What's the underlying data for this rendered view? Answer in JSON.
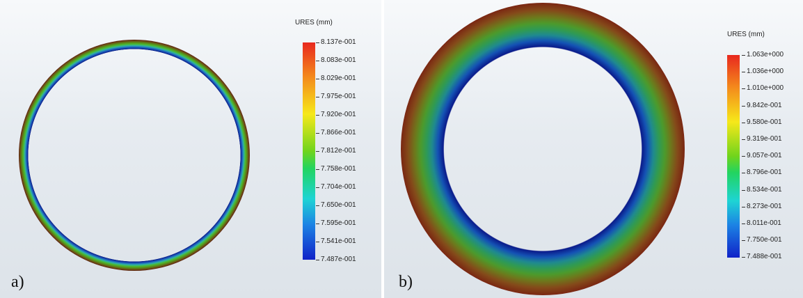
{
  "panel_a": {
    "label": "a)",
    "legend_title": "URES (mm)",
    "ticks": [
      "8.137e-001",
      "8.083e-001",
      "8.029e-001",
      "7.975e-001",
      "7.920e-001",
      "7.866e-001",
      "7.812e-001",
      "7.758e-001",
      "7.704e-001",
      "7.650e-001",
      "7.595e-001",
      "7.541e-001",
      "7.487e-001"
    ]
  },
  "panel_b": {
    "label": "b)",
    "legend_title": "URES (mm)",
    "ticks": [
      "1.063e+000",
      "1.036e+000",
      "1.010e+000",
      "9.842e-001",
      "9.580e-001",
      "9.319e-001",
      "9.057e-001",
      "8.796e-001",
      "8.534e-001",
      "8.273e-001",
      "8.011e-001",
      "7.750e-001",
      "7.488e-001"
    ]
  },
  "colors": {
    "max": "#e8281e",
    "mid": "#22d460",
    "min": "#1022c8"
  }
}
